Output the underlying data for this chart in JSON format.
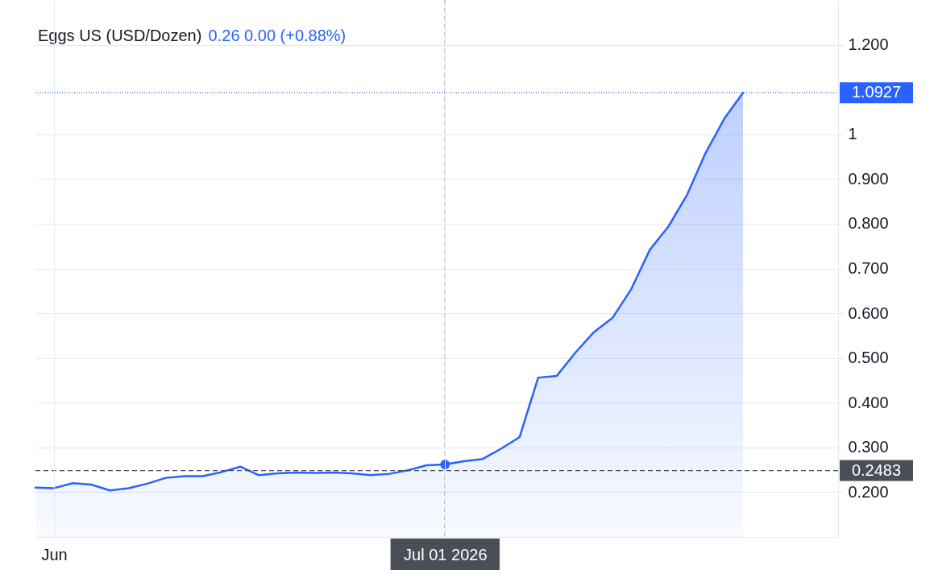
{
  "chart_data": {
    "type": "area",
    "title": "Eggs US (USD/Dozen)",
    "subtitle": "0.26  0.00 (+0.88%)",
    "categories": [
      null,
      "Jun",
      null,
      null,
      null,
      null,
      null,
      null,
      null,
      null,
      null,
      null,
      null,
      null,
      null,
      null,
      null,
      null,
      null,
      null,
      null,
      null,
      "Jul 01 2026",
      null,
      null,
      null,
      null,
      null,
      null,
      null,
      null,
      null,
      null,
      null,
      null,
      null,
      null,
      null,
      null
    ],
    "series": [
      {
        "color": "#2962ff",
        "values": [
          0.21,
          0.209,
          0.22,
          0.217,
          0.204,
          0.209,
          0.219,
          0.232,
          0.236,
          0.236,
          0.245,
          0.257,
          0.238,
          0.242,
          0.244,
          0.243,
          0.244,
          0.242,
          0.238,
          0.241,
          0.249,
          0.26,
          0.262,
          0.269,
          0.274,
          0.297,
          0.323,
          0.456,
          0.46,
          0.512,
          0.558,
          0.59,
          0.654,
          0.742,
          0.794,
          0.865,
          0.959,
          1.035,
          1.0927
        ]
      },
      {
        "type": "scatter",
        "marker": "circle",
        "color": "#2962ff",
        "values": [
          null,
          null,
          null,
          null,
          null,
          null,
          null,
          null,
          null,
          null,
          null,
          null,
          null,
          null,
          null,
          null,
          null,
          null,
          null,
          null,
          null,
          null,
          0.262,
          null,
          null,
          null,
          null,
          null,
          null,
          null,
          null,
          null,
          null,
          null,
          null,
          null,
          null,
          null,
          null
        ]
      }
    ],
    "ylim": [
      0.1,
      1.3
    ],
    "yticks": [
      {
        "value": 1.2,
        "label": "1.200"
      },
      {
        "value": 1,
        "label": "1"
      },
      {
        "value": 0.9,
        "label": "0.900"
      },
      {
        "value": 0.8,
        "label": "0.800"
      },
      {
        "value": 0.7,
        "label": "0.700"
      },
      {
        "value": 0.6,
        "label": "0.600"
      },
      {
        "value": 0.5,
        "label": "0.500"
      },
      {
        "value": 0.4,
        "label": "0.400"
      },
      {
        "value": 0.3,
        "label": "0.300"
      },
      {
        "value": 0.2,
        "label": "0.200"
      }
    ],
    "ref_lines": [
      {
        "axis": "y",
        "value": 0.2483,
        "label": "0.2483",
        "color": "#4a4e57",
        "line_style": "dashed"
      },
      {
        "axis": "y",
        "value": 1.0927,
        "label": "1.0927",
        "color": "#2962ff",
        "line_style": "dotted"
      },
      {
        "axis": "x",
        "value": "Jul 01 2026",
        "color": "#4a4e57",
        "line_style": "dashed"
      }
    ],
    "grid": true
  }
}
